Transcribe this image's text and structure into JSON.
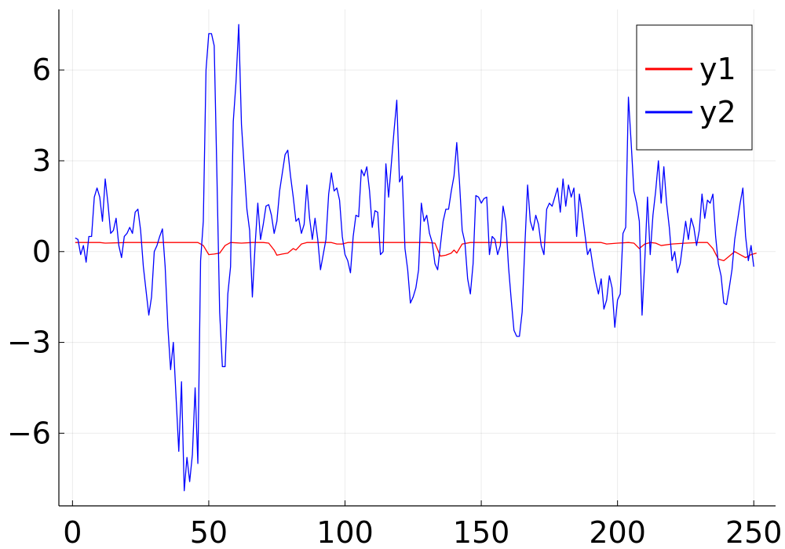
{
  "chart_data": {
    "type": "line",
    "title": "",
    "xlabel": "",
    "ylabel": "",
    "xlim": [
      -5,
      258
    ],
    "ylim": [
      -8.4,
      8.0
    ],
    "xticks": [
      0,
      50,
      100,
      150,
      200,
      250
    ],
    "xtick_labels": [
      "0",
      "50",
      "100",
      "150",
      "200",
      "250"
    ],
    "yticks": [
      -6,
      -3,
      0,
      3,
      6
    ],
    "ytick_labels": [
      "−6",
      "−3",
      "0",
      "3",
      "6"
    ],
    "grid": true,
    "legend_position": "top-right",
    "series": [
      {
        "name": "y1",
        "color": "#ff0000",
        "points": [
          [
            1,
            0.3
          ],
          [
            10,
            0.3
          ],
          [
            12,
            0.28
          ],
          [
            20,
            0.3
          ],
          [
            30,
            0.3
          ],
          [
            40,
            0.3
          ],
          [
            46,
            0.3
          ],
          [
            48,
            0.2
          ],
          [
            50,
            -0.1
          ],
          [
            52,
            -0.08
          ],
          [
            54,
            -0.05
          ],
          [
            56,
            0.2
          ],
          [
            58,
            0.3
          ],
          [
            62,
            0.28
          ],
          [
            66,
            0.3
          ],
          [
            70,
            0.3
          ],
          [
            72,
            0.28
          ],
          [
            74,
            0.05
          ],
          [
            75,
            -0.12
          ],
          [
            77,
            -0.08
          ],
          [
            79,
            -0.05
          ],
          [
            81,
            0.1
          ],
          [
            82,
            0.05
          ],
          [
            84,
            0.25
          ],
          [
            86,
            0.3
          ],
          [
            90,
            0.3
          ],
          [
            95,
            0.3
          ],
          [
            97,
            0.25
          ],
          [
            99,
            0.25
          ],
          [
            101,
            0.3
          ],
          [
            110,
            0.3
          ],
          [
            120,
            0.3
          ],
          [
            130,
            0.3
          ],
          [
            133,
            0.28
          ],
          [
            135,
            -0.15
          ],
          [
            137,
            -0.12
          ],
          [
            139,
            -0.05
          ],
          [
            140,
            0.05
          ],
          [
            141,
            -0.05
          ],
          [
            143,
            0.25
          ],
          [
            146,
            0.3
          ],
          [
            150,
            0.3
          ],
          [
            160,
            0.3
          ],
          [
            170,
            0.3
          ],
          [
            180,
            0.3
          ],
          [
            190,
            0.3
          ],
          [
            194,
            0.3
          ],
          [
            196,
            0.25
          ],
          [
            200,
            0.28
          ],
          [
            204,
            0.3
          ],
          [
            206,
            0.28
          ],
          [
            208,
            0.1
          ],
          [
            210,
            0.25
          ],
          [
            212,
            0.3
          ],
          [
            214,
            0.28
          ],
          [
            216,
            0.2
          ],
          [
            220,
            0.25
          ],
          [
            225,
            0.28
          ],
          [
            230,
            0.3
          ],
          [
            233,
            0.3
          ],
          [
            235,
            0.1
          ],
          [
            237,
            -0.25
          ],
          [
            239,
            -0.3
          ],
          [
            241,
            -0.15
          ],
          [
            243,
            0.0
          ],
          [
            245,
            -0.1
          ],
          [
            247,
            -0.2
          ],
          [
            249,
            -0.1
          ],
          [
            251,
            -0.05
          ]
        ]
      },
      {
        "name": "y2",
        "color": "#0000ff",
        "points": [
          [
            1,
            0.45
          ],
          [
            2,
            0.4
          ],
          [
            3,
            -0.1
          ],
          [
            4,
            0.2
          ],
          [
            5,
            -0.35
          ],
          [
            6,
            0.5
          ],
          [
            7,
            0.5
          ],
          [
            8,
            1.8
          ],
          [
            9,
            2.1
          ],
          [
            10,
            1.8
          ],
          [
            11,
            1.0
          ],
          [
            12,
            2.4
          ],
          [
            13,
            1.6
          ],
          [
            14,
            0.6
          ],
          [
            15,
            0.7
          ],
          [
            16,
            1.1
          ],
          [
            17,
            0.2
          ],
          [
            18,
            -0.2
          ],
          [
            19,
            0.5
          ],
          [
            20,
            0.6
          ],
          [
            21,
            0.8
          ],
          [
            22,
            0.6
          ],
          [
            23,
            1.3
          ],
          [
            24,
            1.4
          ],
          [
            25,
            0.7
          ],
          [
            26,
            -0.5
          ],
          [
            27,
            -1.3
          ],
          [
            28,
            -2.1
          ],
          [
            29,
            -1.5
          ],
          [
            30,
            0.0
          ],
          [
            31,
            0.2
          ],
          [
            32,
            0.5
          ],
          [
            33,
            0.75
          ],
          [
            34,
            -0.5
          ],
          [
            35,
            -2.5
          ],
          [
            36,
            -3.9
          ],
          [
            37,
            -3.0
          ],
          [
            38,
            -4.8
          ],
          [
            39,
            -6.6
          ],
          [
            40,
            -4.3
          ],
          [
            41,
            -7.9
          ],
          [
            42,
            -6.8
          ],
          [
            43,
            -7.6
          ],
          [
            44,
            -6.7
          ],
          [
            45,
            -4.5
          ],
          [
            46,
            -7.0
          ],
          [
            47,
            -0.3
          ],
          [
            48,
            1.0
          ],
          [
            49,
            6.0
          ],
          [
            50,
            7.2
          ],
          [
            51,
            7.2
          ],
          [
            52,
            6.8
          ],
          [
            53,
            2.5
          ],
          [
            54,
            -2.0
          ],
          [
            55,
            -3.8
          ],
          [
            56,
            -3.8
          ],
          [
            57,
            -1.4
          ],
          [
            58,
            -0.5
          ],
          [
            59,
            4.3
          ],
          [
            60,
            5.6
          ],
          [
            61,
            7.5
          ],
          [
            62,
            4.2
          ],
          [
            63,
            2.8
          ],
          [
            64,
            1.4
          ],
          [
            65,
            0.7
          ],
          [
            66,
            -1.5
          ],
          [
            67,
            0.2
          ],
          [
            68,
            1.6
          ],
          [
            69,
            0.4
          ],
          [
            70,
            0.9
          ],
          [
            71,
            1.5
          ],
          [
            72,
            1.55
          ],
          [
            73,
            1.2
          ],
          [
            74,
            0.6
          ],
          [
            75,
            1.0
          ],
          [
            76,
            2.0
          ],
          [
            77,
            2.6
          ],
          [
            78,
            3.2
          ],
          [
            79,
            3.35
          ],
          [
            80,
            2.5
          ],
          [
            81,
            1.8
          ],
          [
            82,
            1.0
          ],
          [
            83,
            1.1
          ],
          [
            84,
            0.6
          ],
          [
            85,
            0.9
          ],
          [
            86,
            2.2
          ],
          [
            87,
            1.1
          ],
          [
            88,
            0.4
          ],
          [
            89,
            1.1
          ],
          [
            90,
            0.4
          ],
          [
            91,
            -0.6
          ],
          [
            92,
            -0.1
          ],
          [
            93,
            0.4
          ],
          [
            94,
            1.9
          ],
          [
            95,
            2.6
          ],
          [
            96,
            2.0
          ],
          [
            97,
            2.1
          ],
          [
            98,
            1.7
          ],
          [
            99,
            0.5
          ],
          [
            100,
            -0.1
          ],
          [
            101,
            -0.3
          ],
          [
            102,
            -0.7
          ],
          [
            103,
            0.5
          ],
          [
            104,
            1.2
          ],
          [
            105,
            1.15
          ],
          [
            106,
            2.7
          ],
          [
            107,
            2.5
          ],
          [
            108,
            2.8
          ],
          [
            109,
            2.0
          ],
          [
            110,
            0.8
          ],
          [
            111,
            1.35
          ],
          [
            112,
            1.3
          ],
          [
            113,
            -0.1
          ],
          [
            114,
            0.0
          ],
          [
            115,
            2.9
          ],
          [
            116,
            1.8
          ],
          [
            117,
            2.9
          ],
          [
            118,
            4.0
          ],
          [
            119,
            5.0
          ],
          [
            120,
            2.3
          ],
          [
            121,
            2.5
          ],
          [
            122,
            0.1
          ],
          [
            123,
            -0.6
          ],
          [
            124,
            -1.7
          ],
          [
            125,
            -1.5
          ],
          [
            126,
            -1.2
          ],
          [
            127,
            -0.6
          ],
          [
            128,
            1.6
          ],
          [
            129,
            1.0
          ],
          [
            130,
            1.2
          ],
          [
            131,
            0.6
          ],
          [
            132,
            0.3
          ],
          [
            133,
            -0.4
          ],
          [
            134,
            -0.6
          ],
          [
            135,
            0.2
          ],
          [
            136,
            1.0
          ],
          [
            137,
            1.4
          ],
          [
            138,
            1.4
          ],
          [
            139,
            2.0
          ],
          [
            140,
            2.5
          ],
          [
            141,
            3.6
          ],
          [
            142,
            2.3
          ],
          [
            143,
            0.7
          ],
          [
            144,
            0.3
          ],
          [
            145,
            -0.9
          ],
          [
            146,
            -1.4
          ],
          [
            147,
            -0.4
          ],
          [
            148,
            1.85
          ],
          [
            149,
            1.8
          ],
          [
            150,
            1.6
          ],
          [
            151,
            1.75
          ],
          [
            152,
            1.8
          ],
          [
            153,
            -0.1
          ],
          [
            154,
            0.5
          ],
          [
            155,
            0.4
          ],
          [
            156,
            -0.1
          ],
          [
            157,
            0.2
          ],
          [
            158,
            1.5
          ],
          [
            159,
            1.0
          ],
          [
            160,
            -0.5
          ],
          [
            161,
            -1.6
          ],
          [
            162,
            -2.6
          ],
          [
            163,
            -2.8
          ],
          [
            164,
            -2.8
          ],
          [
            165,
            -2.0
          ],
          [
            166,
            0.2
          ],
          [
            167,
            2.2
          ],
          [
            168,
            1.0
          ],
          [
            169,
            0.7
          ],
          [
            170,
            1.2
          ],
          [
            171,
            0.9
          ],
          [
            172,
            0.2
          ],
          [
            173,
            -0.1
          ],
          [
            174,
            1.4
          ],
          [
            175,
            1.6
          ],
          [
            176,
            1.5
          ],
          [
            177,
            1.8
          ],
          [
            178,
            2.1
          ],
          [
            179,
            1.3
          ],
          [
            180,
            2.4
          ],
          [
            181,
            1.5
          ],
          [
            182,
            2.2
          ],
          [
            183,
            1.8
          ],
          [
            184,
            2.1
          ],
          [
            185,
            0.5
          ],
          [
            186,
            1.9
          ],
          [
            187,
            1.3
          ],
          [
            188,
            0.6
          ],
          [
            189,
            -0.1
          ],
          [
            190,
            0.1
          ],
          [
            191,
            -0.5
          ],
          [
            192,
            -1.0
          ],
          [
            193,
            -1.4
          ],
          [
            194,
            -0.9
          ],
          [
            195,
            -1.9
          ],
          [
            196,
            -1.6
          ],
          [
            197,
            -0.8
          ],
          [
            198,
            -1.2
          ],
          [
            199,
            -2.5
          ],
          [
            200,
            -1.6
          ],
          [
            201,
            -1.4
          ],
          [
            202,
            0.6
          ],
          [
            203,
            0.8
          ],
          [
            204,
            5.1
          ],
          [
            205,
            3.6
          ],
          [
            206,
            2.0
          ],
          [
            207,
            1.6
          ],
          [
            208,
            1.0
          ],
          [
            209,
            -2.1
          ],
          [
            210,
            -0.3
          ],
          [
            211,
            1.8
          ],
          [
            212,
            -0.1
          ],
          [
            213,
            1.2
          ],
          [
            214,
            2.0
          ],
          [
            215,
            3.0
          ],
          [
            216,
            1.6
          ],
          [
            217,
            2.8
          ],
          [
            218,
            1.6
          ],
          [
            219,
            0.8
          ],
          [
            220,
            -0.3
          ],
          [
            221,
            0.0
          ],
          [
            222,
            -0.7
          ],
          [
            223,
            -0.4
          ],
          [
            224,
            0.3
          ],
          [
            225,
            1.0
          ],
          [
            226,
            0.4
          ],
          [
            227,
            1.1
          ],
          [
            228,
            0.8
          ],
          [
            229,
            0.2
          ],
          [
            230,
            0.7
          ],
          [
            231,
            1.9
          ],
          [
            232,
            1.1
          ],
          [
            233,
            1.7
          ],
          [
            234,
            1.6
          ],
          [
            235,
            1.9
          ],
          [
            236,
            0.5
          ],
          [
            237,
            -0.4
          ],
          [
            238,
            -0.8
          ],
          [
            239,
            -1.7
          ],
          [
            240,
            -1.75
          ],
          [
            241,
            -1.2
          ],
          [
            242,
            -0.6
          ],
          [
            243,
            0.4
          ],
          [
            244,
            1.0
          ],
          [
            245,
            1.6
          ],
          [
            246,
            2.1
          ],
          [
            247,
            0.5
          ],
          [
            248,
            -0.3
          ],
          [
            249,
            0.2
          ],
          [
            250,
            -0.5
          ]
        ]
      }
    ]
  }
}
